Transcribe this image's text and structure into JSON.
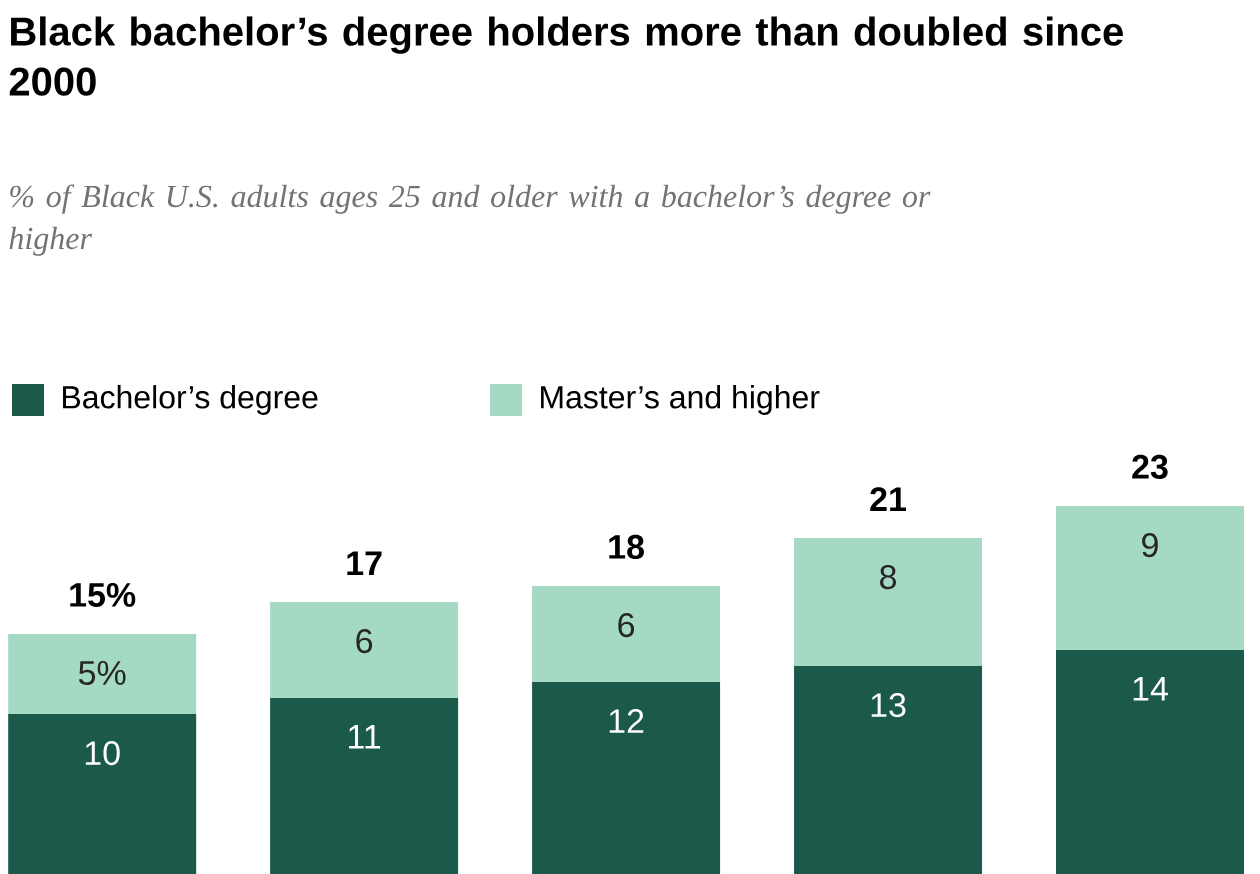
{
  "chart_data": {
    "type": "bar",
    "title": "Black bachelor’s degree holders more than doubled since 2000",
    "subtitle": "% of Black U.S. adults ages 25 and older with a bachelor’s degree or higher",
    "categories": [
      null,
      null,
      null,
      null,
      null
    ],
    "stacked": true,
    "series": [
      {
        "name": "Bachelor’s degree",
        "color": "#1b5a4b",
        "values": [
          10,
          11,
          12,
          13,
          14
        ],
        "value_labels": [
          "10",
          "11",
          "12",
          "13",
          "14"
        ]
      },
      {
        "name": "Master’s and higher",
        "color": "#a4d9c4",
        "values": [
          5,
          6,
          6,
          8,
          9
        ],
        "value_labels": [
          "5%",
          "6",
          "6",
          "8",
          "9"
        ]
      }
    ],
    "totals": [
      "15%",
      "17",
      "18",
      "21",
      "23"
    ],
    "legend": "top left"
  }
}
